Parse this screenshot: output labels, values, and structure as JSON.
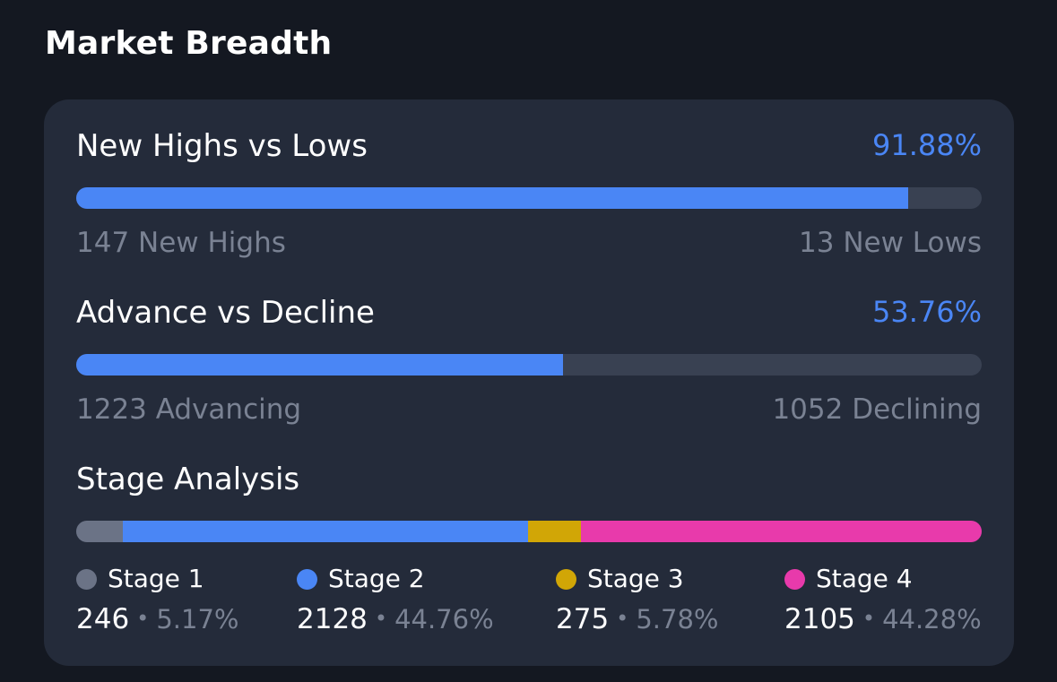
{
  "page": {
    "title": "Market Breadth"
  },
  "highs_lows": {
    "title": "New Highs vs Lows",
    "percent_label": "91.88%",
    "fill_fraction": 0.9188,
    "left_label": "147 New Highs",
    "right_label": "13 New Lows"
  },
  "advance_decline": {
    "title": "Advance vs Decline",
    "percent_label": "53.76%",
    "fill_fraction": 0.5376,
    "left_label": "1223 Advancing",
    "right_label": "1052 Declining"
  },
  "stage_analysis": {
    "title": "Stage Analysis",
    "stages": [
      {
        "label": "Stage 1",
        "count": "246",
        "percent": "5.17%",
        "fraction": 0.0517,
        "color": "#6b7386"
      },
      {
        "label": "Stage 2",
        "count": "2128",
        "percent": "44.76%",
        "fraction": 0.4476,
        "color": "#4a86f5"
      },
      {
        "label": "Stage 3",
        "count": "275",
        "percent": "5.78%",
        "fraction": 0.0578,
        "color": "#d1a606"
      },
      {
        "label": "Stage 4",
        "count": "2105",
        "percent": "44.28%",
        "fraction": 0.4428,
        "color": "#e83aab"
      }
    ],
    "separator": "•"
  }
}
